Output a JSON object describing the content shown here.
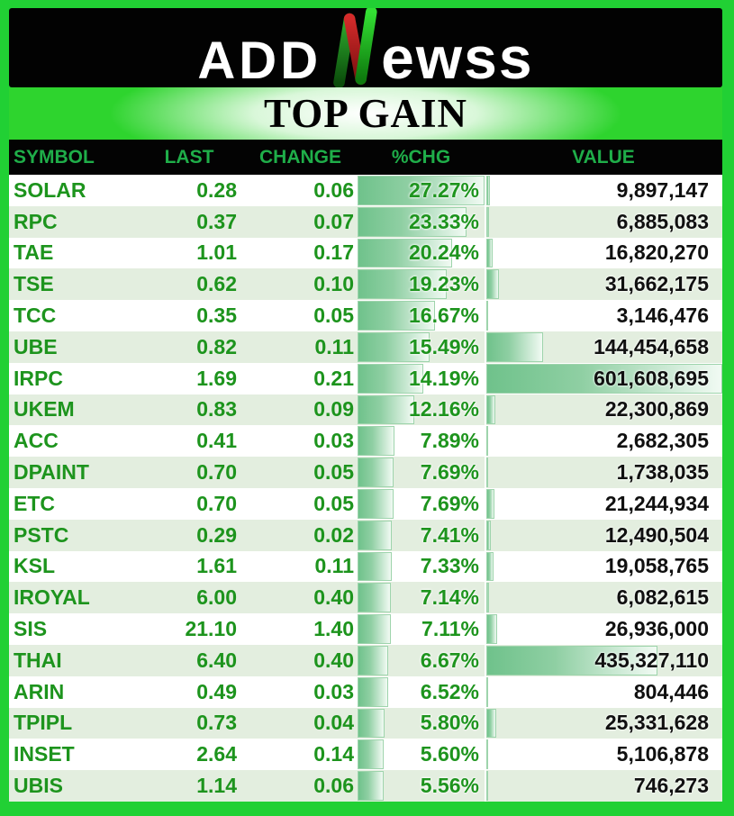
{
  "header": {
    "brand_prefix": "ADD",
    "brand_n": "N",
    "brand_suffix": "ewss"
  },
  "title": "TOP GAIN",
  "colors": {
    "frame_green": "#21d034",
    "band_green": "#2ed42e",
    "header_label_green": "#1fae49",
    "row_text_green": "#1d941d",
    "value_text": "#101010",
    "alt_row_bg": "#e3eedf",
    "bar_fill_green": "#6fc28b",
    "bar_border": "#9ed4ac",
    "band_black": "#020202",
    "logo_red": "#c22323"
  },
  "chart_data": {
    "type": "table",
    "title": "TOP GAIN",
    "columns": [
      "SYMBOL",
      "LAST",
      "CHANGE",
      "%CHG",
      "VALUE"
    ],
    "pct_bar_max": 27.27,
    "value_bar_max": 601608695,
    "layout_hints": {
      "pct_chg_databar": "green gradient bar proportional to pct_chg, max = 27.27%",
      "value_databar": "green gradient bar proportional to value, max = 601,608,695",
      "alternating_rows": true
    },
    "rows": [
      {
        "symbol": "SOLAR",
        "last": "0.28",
        "change": "0.06",
        "pct_chg": "27.27%",
        "pct_chg_value": 27.27,
        "value": "9,897,147",
        "value_number": 9897147
      },
      {
        "symbol": "RPC",
        "last": "0.37",
        "change": "0.07",
        "pct_chg": "23.33%",
        "pct_chg_value": 23.33,
        "value": "6,885,083",
        "value_number": 6885083
      },
      {
        "symbol": "TAE",
        "last": "1.01",
        "change": "0.17",
        "pct_chg": "20.24%",
        "pct_chg_value": 20.24,
        "value": "16,820,270",
        "value_number": 16820270
      },
      {
        "symbol": "TSE",
        "last": "0.62",
        "change": "0.10",
        "pct_chg": "19.23%",
        "pct_chg_value": 19.23,
        "value": "31,662,175",
        "value_number": 31662175
      },
      {
        "symbol": "TCC",
        "last": "0.35",
        "change": "0.05",
        "pct_chg": "16.67%",
        "pct_chg_value": 16.67,
        "value": "3,146,476",
        "value_number": 3146476
      },
      {
        "symbol": "UBE",
        "last": "0.82",
        "change": "0.11",
        "pct_chg": "15.49%",
        "pct_chg_value": 15.49,
        "value": "144,454,658",
        "value_number": 144454658
      },
      {
        "symbol": "IRPC",
        "last": "1.69",
        "change": "0.21",
        "pct_chg": "14.19%",
        "pct_chg_value": 14.19,
        "value": "601,608,695",
        "value_number": 601608695
      },
      {
        "symbol": "UKEM",
        "last": "0.83",
        "change": "0.09",
        "pct_chg": "12.16%",
        "pct_chg_value": 12.16,
        "value": "22,300,869",
        "value_number": 22300869
      },
      {
        "symbol": "ACC",
        "last": "0.41",
        "change": "0.03",
        "pct_chg": "7.89%",
        "pct_chg_value": 7.89,
        "value": "2,682,305",
        "value_number": 2682305
      },
      {
        "symbol": "DPAINT",
        "last": "0.70",
        "change": "0.05",
        "pct_chg": "7.69%",
        "pct_chg_value": 7.69,
        "value": "1,738,035",
        "value_number": 1738035
      },
      {
        "symbol": "ETC",
        "last": "0.70",
        "change": "0.05",
        "pct_chg": "7.69%",
        "pct_chg_value": 7.69,
        "value": "21,244,934",
        "value_number": 21244934
      },
      {
        "symbol": "PSTC",
        "last": "0.29",
        "change": "0.02",
        "pct_chg": "7.41%",
        "pct_chg_value": 7.41,
        "value": "12,490,504",
        "value_number": 12490504
      },
      {
        "symbol": "KSL",
        "last": "1.61",
        "change": "0.11",
        "pct_chg": "7.33%",
        "pct_chg_value": 7.33,
        "value": "19,058,765",
        "value_number": 19058765
      },
      {
        "symbol": "IROYAL",
        "last": "6.00",
        "change": "0.40",
        "pct_chg": "7.14%",
        "pct_chg_value": 7.14,
        "value": "6,082,615",
        "value_number": 6082615
      },
      {
        "symbol": "SIS",
        "last": "21.10",
        "change": "1.40",
        "pct_chg": "7.11%",
        "pct_chg_value": 7.11,
        "value": "26,936,000",
        "value_number": 26936000
      },
      {
        "symbol": "THAI",
        "last": "6.40",
        "change": "0.40",
        "pct_chg": "6.67%",
        "pct_chg_value": 6.67,
        "value": "435,327,110",
        "value_number": 435327110
      },
      {
        "symbol": "ARIN",
        "last": "0.49",
        "change": "0.03",
        "pct_chg": "6.52%",
        "pct_chg_value": 6.52,
        "value": "804,446",
        "value_number": 804446
      },
      {
        "symbol": "TPIPL",
        "last": "0.73",
        "change": "0.04",
        "pct_chg": "5.80%",
        "pct_chg_value": 5.8,
        "value": "25,331,628",
        "value_number": 25331628
      },
      {
        "symbol": "INSET",
        "last": "2.64",
        "change": "0.14",
        "pct_chg": "5.60%",
        "pct_chg_value": 5.6,
        "value": "5,106,878",
        "value_number": 5106878
      },
      {
        "symbol": "UBIS",
        "last": "1.14",
        "change": "0.06",
        "pct_chg": "5.56%",
        "pct_chg_value": 5.56,
        "value": "746,273",
        "value_number": 746273
      }
    ]
  }
}
